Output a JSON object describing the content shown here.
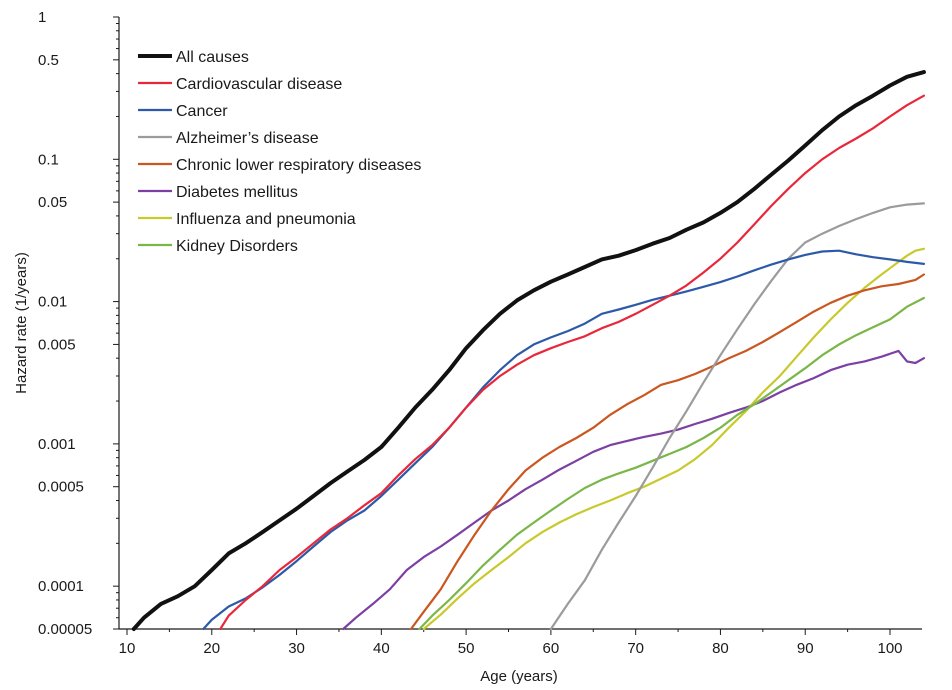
{
  "chart_data": {
    "type": "line",
    "xlabel": "Age (years)",
    "ylabel": "Hazard rate (1/years)",
    "y_scale": "log",
    "xlim": [
      10,
      105
    ],
    "ylim": [
      5e-05,
      1
    ],
    "x_ticks": [
      {
        "value": 10,
        "label": "10"
      },
      {
        "value": 20,
        "label": "20"
      },
      {
        "value": 30,
        "label": "30"
      },
      {
        "value": 40,
        "label": "40"
      },
      {
        "value": 50,
        "label": "50"
      },
      {
        "value": 60,
        "label": "60"
      },
      {
        "value": 70,
        "label": "70"
      },
      {
        "value": 80,
        "label": "80"
      },
      {
        "value": 90,
        "label": "90"
      },
      {
        "value": 100,
        "label": "100"
      }
    ],
    "y_ticks": [
      {
        "value": 5e-05,
        "label": "0.00005"
      },
      {
        "value": 0.0001,
        "label": "0.0001"
      },
      {
        "value": 0.0005,
        "label": "0.0005"
      },
      {
        "value": 0.001,
        "label": "0.001"
      },
      {
        "value": 0.005,
        "label": "0.005"
      },
      {
        "value": 0.01,
        "label": "0.01"
      },
      {
        "value": 0.05,
        "label": "0.05"
      },
      {
        "value": 0.1,
        "label": "0.1"
      },
      {
        "value": 0.5,
        "label": "0.5"
      },
      {
        "value": 1,
        "label": "1"
      }
    ],
    "grid": false,
    "legend_position": "top-left",
    "series": [
      {
        "name": "All causes",
        "color": "#111111",
        "width": 4,
        "x": [
          10.8,
          12,
          14,
          16,
          18,
          20,
          22,
          24,
          26,
          28,
          30,
          32,
          34,
          36,
          38,
          40,
          42,
          44,
          46,
          48,
          50,
          52,
          54,
          56,
          58,
          60,
          62,
          64,
          66,
          68,
          70,
          72,
          74,
          76,
          78,
          80,
          82,
          84,
          86,
          88,
          90,
          92,
          94,
          96,
          98,
          100,
          102,
          104
        ],
        "y": [
          5e-05,
          6e-05,
          7.5e-05,
          8.5e-05,
          0.0001,
          0.00013,
          0.00017,
          0.0002,
          0.00024,
          0.00029,
          0.00035,
          0.00043,
          0.00053,
          0.00064,
          0.00077,
          0.00095,
          0.0013,
          0.0018,
          0.0024,
          0.0033,
          0.0047,
          0.0063,
          0.0082,
          0.0102,
          0.012,
          0.0138,
          0.0155,
          0.0175,
          0.0198,
          0.021,
          0.023,
          0.0255,
          0.028,
          0.032,
          0.036,
          0.042,
          0.05,
          0.062,
          0.078,
          0.098,
          0.125,
          0.16,
          0.2,
          0.24,
          0.28,
          0.33,
          0.38,
          0.41
        ]
      },
      {
        "name": "Cardiovascular disease",
        "color": "#e8283a",
        "width": 2.2,
        "x": [
          21,
          22,
          24,
          26,
          28,
          30,
          32,
          34,
          36,
          38,
          40,
          42,
          44,
          46,
          48,
          50,
          52,
          54,
          56,
          58,
          60,
          62,
          64,
          66,
          68,
          70,
          72,
          74,
          76,
          78,
          80,
          82,
          84,
          86,
          88,
          90,
          92,
          94,
          96,
          98,
          100,
          102,
          104
        ],
        "y": [
          5e-05,
          6.2e-05,
          8e-05,
          0.0001,
          0.00013,
          0.00016,
          0.0002,
          0.00025,
          0.0003,
          0.00037,
          0.00045,
          0.0006,
          0.00078,
          0.00098,
          0.0013,
          0.0018,
          0.0024,
          0.003,
          0.0036,
          0.0042,
          0.0047,
          0.0052,
          0.0057,
          0.0065,
          0.0072,
          0.0082,
          0.0095,
          0.011,
          0.013,
          0.016,
          0.02,
          0.026,
          0.035,
          0.047,
          0.062,
          0.08,
          0.1,
          0.12,
          0.14,
          0.165,
          0.2,
          0.24,
          0.28
        ]
      },
      {
        "name": "Cancer",
        "color": "#2c5aa8",
        "width": 2.2,
        "x": [
          19,
          20,
          22,
          24,
          26,
          28,
          30,
          32,
          34,
          36,
          38,
          40,
          42,
          44,
          46,
          48,
          50,
          52,
          54,
          56,
          58,
          60,
          62,
          64,
          66,
          68,
          70,
          72,
          74,
          76,
          78,
          80,
          82,
          84,
          86,
          88,
          90,
          92,
          94,
          96,
          98,
          100,
          102,
          104
        ],
        "y": [
          5e-05,
          5.8e-05,
          7.2e-05,
          8.2e-05,
          9.8e-05,
          0.00012,
          0.00015,
          0.00019,
          0.00024,
          0.00029,
          0.00034,
          0.00043,
          0.00056,
          0.00073,
          0.00095,
          0.0013,
          0.0018,
          0.0025,
          0.0033,
          0.0042,
          0.005,
          0.0056,
          0.0062,
          0.007,
          0.0082,
          0.0088,
          0.0095,
          0.0103,
          0.011,
          0.0118,
          0.0127,
          0.0137,
          0.015,
          0.0166,
          0.0182,
          0.0198,
          0.0213,
          0.0225,
          0.0228,
          0.0215,
          0.0205,
          0.0198,
          0.019,
          0.0184
        ]
      },
      {
        "name": "Alzheimer’s disease",
        "color": "#9b9b9b",
        "width": 2.2,
        "x": [
          60,
          62,
          64,
          66,
          68,
          70,
          72,
          74,
          76,
          78,
          80,
          82,
          84,
          86,
          88,
          90,
          92,
          94,
          96,
          98,
          100,
          102,
          104
        ],
        "y": [
          5e-05,
          7.5e-05,
          0.00011,
          0.00018,
          0.00028,
          0.00043,
          0.00068,
          0.0011,
          0.0017,
          0.0027,
          0.0042,
          0.0064,
          0.0096,
          0.014,
          0.02,
          0.026,
          0.03,
          0.034,
          0.038,
          0.042,
          0.046,
          0.048,
          0.049
        ]
      },
      {
        "name": "Chronic lower respiratory diseases",
        "color": "#c9571f",
        "width": 2.2,
        "x": [
          43.5,
          45,
          47,
          49,
          51,
          53,
          55,
          57,
          59,
          61,
          63,
          65,
          67,
          69,
          71,
          73,
          75,
          77,
          79,
          81,
          83,
          85,
          87,
          89,
          91,
          93,
          95,
          97,
          99,
          101,
          103,
          104
        ],
        "y": [
          5e-05,
          6.6e-05,
          9.5e-05,
          0.00015,
          0.00023,
          0.00034,
          0.00048,
          0.00065,
          0.0008,
          0.00095,
          0.0011,
          0.0013,
          0.0016,
          0.0019,
          0.0022,
          0.0026,
          0.0028,
          0.0031,
          0.0035,
          0.004,
          0.0045,
          0.0052,
          0.0061,
          0.0072,
          0.0085,
          0.0098,
          0.011,
          0.012,
          0.0128,
          0.0133,
          0.0142,
          0.0155
        ]
      },
      {
        "name": "Diabetes mellitus",
        "color": "#7c3fa2",
        "width": 2.2,
        "x": [
          35.5,
          37,
          39,
          41,
          43,
          45,
          47,
          49,
          51,
          53,
          55,
          57,
          59,
          61,
          63,
          65,
          67,
          69,
          71,
          73,
          75,
          77,
          79,
          81,
          83,
          85,
          87,
          89,
          91,
          93,
          95,
          97,
          99,
          101,
          102,
          103,
          104
        ],
        "y": [
          5e-05,
          6e-05,
          7.5e-05,
          9.5e-05,
          0.00013,
          0.00016,
          0.00019,
          0.00023,
          0.00028,
          0.00034,
          0.0004,
          0.00048,
          0.00056,
          0.00066,
          0.00076,
          0.00088,
          0.00098,
          0.00105,
          0.00112,
          0.00118,
          0.00126,
          0.00138,
          0.0015,
          0.00165,
          0.0018,
          0.002,
          0.0023,
          0.0026,
          0.0029,
          0.0033,
          0.0036,
          0.0038,
          0.0041,
          0.0045,
          0.0038,
          0.0037,
          0.004
        ]
      },
      {
        "name": "Influenza and pneumonia",
        "color": "#c8c92c",
        "width": 2.2,
        "x": [
          45,
          47,
          49,
          51,
          53,
          55,
          57,
          59,
          61,
          63,
          65,
          67,
          69,
          71,
          73,
          75,
          77,
          79,
          81,
          83,
          85,
          87,
          89,
          91,
          93,
          95,
          97,
          99,
          101,
          102,
          103,
          104
        ],
        "y": [
          5e-05,
          6.3e-05,
          8.2e-05,
          0.000105,
          0.00013,
          0.00016,
          0.0002,
          0.00024,
          0.00028,
          0.00032,
          0.00036,
          0.0004,
          0.00045,
          0.0005,
          0.00057,
          0.00065,
          0.00078,
          0.00098,
          0.0013,
          0.0017,
          0.0023,
          0.003,
          0.0041,
          0.0056,
          0.0075,
          0.0098,
          0.0125,
          0.0155,
          0.019,
          0.021,
          0.0228,
          0.0235
        ]
      },
      {
        "name": "Kidney Disorders",
        "color": "#7ab648",
        "width": 2.2,
        "x": [
          44.5,
          46,
          48,
          50,
          52,
          54,
          56,
          58,
          60,
          62,
          64,
          66,
          68,
          70,
          72,
          74,
          76,
          78,
          80,
          82,
          84,
          86,
          88,
          90,
          92,
          94,
          96,
          98,
          100,
          102,
          104
        ],
        "y": [
          5e-05,
          6.2e-05,
          8e-05,
          0.000105,
          0.00014,
          0.00018,
          0.00023,
          0.00028,
          0.00034,
          0.00041,
          0.00049,
          0.00056,
          0.00062,
          0.00068,
          0.00076,
          0.00085,
          0.00095,
          0.0011,
          0.0013,
          0.0016,
          0.0019,
          0.0023,
          0.0028,
          0.0034,
          0.0042,
          0.005,
          0.0058,
          0.0066,
          0.0075,
          0.0092,
          0.0106
        ]
      }
    ]
  }
}
